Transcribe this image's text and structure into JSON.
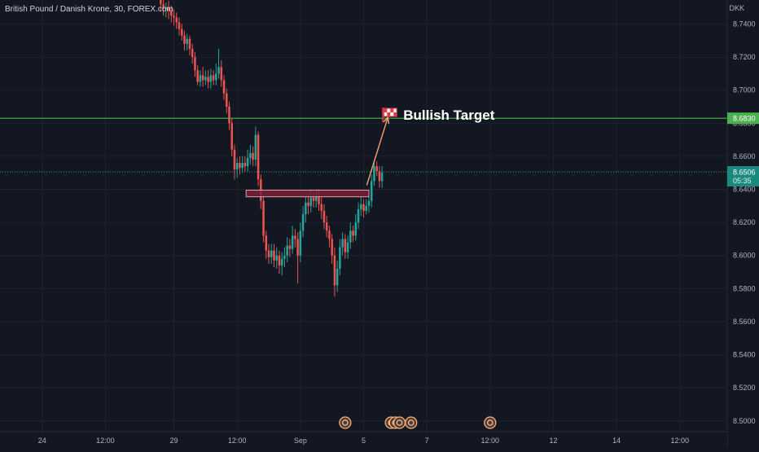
{
  "header": {
    "symbol_title": "British Pound / Danish Krone, 30, FOREX.com",
    "currency": "DKK"
  },
  "colors": {
    "background": "#131722",
    "grid": "#1e222d",
    "up": "#26a69a",
    "down": "#ef5350",
    "target_line": "#4caf50",
    "current_line": "#26a69a",
    "zone_fill": "#7b1e34",
    "zone_border": "#e0a0aa",
    "arrow": "#f5a27a",
    "axis_text": "#b2b5be"
  },
  "chart_data": {
    "type": "candlestick",
    "y_axis": {
      "ylim": [
        8.4935,
        8.7545
      ],
      "ticks": [
        "8.5000",
        "8.5200",
        "8.5400",
        "8.5600",
        "8.5800",
        "8.6000",
        "8.6200",
        "8.6400",
        "8.6600",
        "8.6800",
        "8.7000",
        "8.7200",
        "8.7400"
      ],
      "tick_values": [
        8.5,
        8.52,
        8.54,
        8.56,
        8.58,
        8.6,
        8.62,
        8.64,
        8.66,
        8.68,
        8.7,
        8.72,
        8.74
      ]
    },
    "x_axis": {
      "labels": [
        "24",
        "12:00",
        "29",
        "12:00",
        "Sep",
        "5",
        "7",
        "12:00",
        "12",
        "14",
        "12:00"
      ],
      "label_index": [
        0,
        12,
        25,
        37,
        49,
        61,
        73,
        85,
        97,
        109,
        121
      ]
    },
    "index_range": [
      -8,
      130
    ],
    "last_price": "8.6506",
    "countdown": "05:35",
    "target_price": "8.6830",
    "target_label": "Bullish Target",
    "target_flag_icon": "checkered-flag-icon",
    "horizontal_lines": [
      {
        "name": "bullish-target-line",
        "value": 8.683
      },
      {
        "name": "current-price-line",
        "value": 8.6506
      }
    ],
    "zone": {
      "top": 8.6395,
      "bottom": 8.6355,
      "x_start": 38.7,
      "x_end": 62.0
    },
    "arrow": {
      "from_index": 61.6,
      "from_value": 8.6425,
      "to_index": 65.6,
      "to_value": 8.6835
    },
    "event_markers_index": [
      57.5,
      66.2,
      67.0,
      67.8,
      70.0,
      85.0
    ],
    "ohlc": [
      [
        22.5,
        8.76,
        8.752,
        8.763,
        8.748
      ],
      [
        23.0,
        8.752,
        8.749,
        8.756,
        8.745
      ],
      [
        23.5,
        8.749,
        8.75,
        8.753,
        8.744
      ],
      [
        24.0,
        8.75,
        8.748,
        8.754,
        8.743
      ],
      [
        24.5,
        8.748,
        8.745,
        8.751,
        8.741
      ],
      [
        25.0,
        8.745,
        8.744,
        8.749,
        8.739
      ],
      [
        25.5,
        8.744,
        8.741,
        8.747,
        8.737
      ],
      [
        26.0,
        8.741,
        8.737,
        8.744,
        8.733
      ],
      [
        26.5,
        8.737,
        8.733,
        8.74,
        8.73
      ],
      [
        27.0,
        8.733,
        8.728,
        8.736,
        8.724
      ],
      [
        27.5,
        8.728,
        8.731,
        8.734,
        8.724
      ],
      [
        28.0,
        8.731,
        8.725,
        8.733,
        8.721
      ],
      [
        28.5,
        8.725,
        8.72,
        8.728,
        8.716
      ],
      [
        29.0,
        8.72,
        8.712,
        8.723,
        8.708
      ],
      [
        29.5,
        8.712,
        8.705,
        8.715,
        8.703
      ],
      [
        30.0,
        8.705,
        8.709,
        8.712,
        8.702
      ],
      [
        30.5,
        8.709,
        8.706,
        8.714,
        8.702
      ],
      [
        31.0,
        8.706,
        8.708,
        8.712,
        8.703
      ],
      [
        31.5,
        8.708,
        8.705,
        8.712,
        8.701
      ],
      [
        32.0,
        8.705,
        8.709,
        8.713,
        8.701
      ],
      [
        32.5,
        8.709,
        8.706,
        8.712,
        8.703
      ],
      [
        33.0,
        8.706,
        8.71,
        8.716,
        8.703
      ],
      [
        33.5,
        8.71,
        8.714,
        8.725,
        8.707
      ],
      [
        34.0,
        8.714,
        8.706,
        8.718,
        8.702
      ],
      [
        34.5,
        8.706,
        8.698,
        8.709,
        8.694
      ],
      [
        35.0,
        8.698,
        8.69,
        8.701,
        8.686
      ],
      [
        35.5,
        8.69,
        8.68,
        8.693,
        8.676
      ],
      [
        36.0,
        8.68,
        8.664,
        8.683,
        8.66
      ],
      [
        36.5,
        8.664,
        8.652,
        8.667,
        8.646
      ],
      [
        37.0,
        8.652,
        8.656,
        8.659,
        8.647
      ],
      [
        37.5,
        8.656,
        8.653,
        8.66,
        8.649
      ],
      [
        38.0,
        8.653,
        8.656,
        8.66,
        8.65
      ],
      [
        38.5,
        8.656,
        8.654,
        8.66,
        8.651
      ],
      [
        39.0,
        8.654,
        8.659,
        8.664,
        8.651
      ],
      [
        39.5,
        8.659,
        8.662,
        8.667,
        8.655
      ],
      [
        40.0,
        8.662,
        8.658,
        8.666,
        8.654
      ],
      [
        40.5,
        8.658,
        8.673,
        8.678,
        8.654
      ],
      [
        41.0,
        8.673,
        8.646,
        8.675,
        8.642
      ],
      [
        41.5,
        8.646,
        8.633,
        8.649,
        8.628
      ],
      [
        42.0,
        8.633,
        8.612,
        8.636,
        8.608
      ],
      [
        42.5,
        8.612,
        8.603,
        8.615,
        8.598
      ],
      [
        43.0,
        8.603,
        8.599,
        8.607,
        8.595
      ],
      [
        43.5,
        8.599,
        8.603,
        8.607,
        8.595
      ],
      [
        44.0,
        8.603,
        8.597,
        8.607,
        8.593
      ],
      [
        44.5,
        8.597,
        8.6,
        8.605,
        8.592
      ],
      [
        45.0,
        8.6,
        8.594,
        8.603,
        8.589
      ],
      [
        45.5,
        8.594,
        8.598,
        8.602,
        8.588
      ],
      [
        46.0,
        8.598,
        8.6,
        8.605,
        8.593
      ],
      [
        46.5,
        8.6,
        8.606,
        8.611,
        8.596
      ],
      [
        47.0,
        8.606,
        8.604,
        8.61,
        8.599
      ],
      [
        47.5,
        8.604,
        8.612,
        8.618,
        8.601
      ],
      [
        48.0,
        8.612,
        8.61,
        8.616,
        8.605
      ],
      [
        48.5,
        8.61,
        8.6,
        8.614,
        8.583
      ],
      [
        49.0,
        8.6,
        8.615,
        8.62,
        8.596
      ],
      [
        49.5,
        8.615,
        8.625,
        8.63,
        8.611
      ],
      [
        50.0,
        8.625,
        8.632,
        8.636,
        8.62
      ],
      [
        50.5,
        8.632,
        8.63,
        8.636,
        8.625
      ],
      [
        51.0,
        8.63,
        8.635,
        8.64,
        8.626
      ],
      [
        51.5,
        8.635,
        8.633,
        8.638,
        8.629
      ],
      [
        52.0,
        8.633,
        8.636,
        8.64,
        8.629
      ],
      [
        52.5,
        8.636,
        8.631,
        8.64,
        8.627
      ],
      [
        53.0,
        8.631,
        8.627,
        8.635,
        8.622
      ],
      [
        53.5,
        8.627,
        8.62,
        8.631,
        8.616
      ],
      [
        54.0,
        8.62,
        8.615,
        8.624,
        8.611
      ],
      [
        54.5,
        8.615,
        8.61,
        8.618,
        8.605
      ],
      [
        55.0,
        8.61,
        8.6,
        8.613,
        8.595
      ],
      [
        55.5,
        8.6,
        8.582,
        8.605,
        8.575
      ],
      [
        56.0,
        8.582,
        8.592,
        8.597,
        8.578
      ],
      [
        56.5,
        8.592,
        8.605,
        8.61,
        8.588
      ],
      [
        57.0,
        8.605,
        8.61,
        8.614,
        8.6
      ],
      [
        57.5,
        8.61,
        8.602,
        8.613,
        8.598
      ],
      [
        58.0,
        8.602,
        8.608,
        8.612,
        8.598
      ],
      [
        58.5,
        8.608,
        8.615,
        8.62,
        8.604
      ],
      [
        59.0,
        8.615,
        8.612,
        8.618,
        8.608
      ],
      [
        59.5,
        8.612,
        8.62,
        8.625,
        8.609
      ],
      [
        60.0,
        8.62,
        8.628,
        8.632,
        8.616
      ],
      [
        60.5,
        8.628,
        8.631,
        8.636,
        8.624
      ],
      [
        61.0,
        8.631,
        8.627,
        8.634,
        8.623
      ],
      [
        61.5,
        8.627,
        8.63,
        8.634,
        8.625
      ],
      [
        62.0,
        8.63,
        8.633,
        8.638,
        8.626
      ],
      [
        62.5,
        8.633,
        8.645,
        8.649,
        8.629
      ],
      [
        63.0,
        8.645,
        8.654,
        8.658,
        8.642
      ],
      [
        63.5,
        8.654,
        8.651,
        8.657,
        8.648
      ],
      [
        64.0,
        8.651,
        8.645,
        8.654,
        8.641
      ],
      [
        64.5,
        8.645,
        8.65,
        8.654,
        8.641
      ]
    ]
  }
}
